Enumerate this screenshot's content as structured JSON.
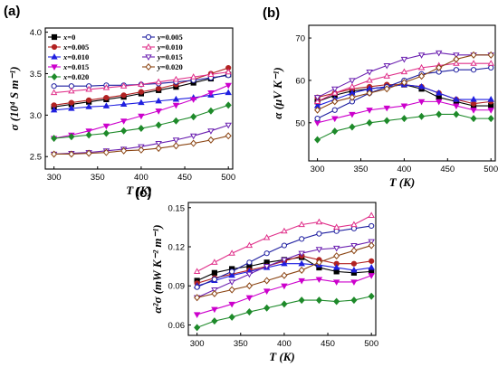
{
  "panels": [
    {
      "label": "(a)"
    },
    {
      "label": "(b)"
    },
    {
      "label": "(c)"
    }
  ],
  "series_meta": [
    {
      "name": "x=0",
      "var": "x",
      "val": "=0",
      "color": "#000000",
      "marker": "square",
      "filled": true
    },
    {
      "name": "x=0.005",
      "var": "x",
      "val": "=0.005",
      "color": "#b22222",
      "marker": "circle",
      "filled": true
    },
    {
      "name": "x=0.010",
      "var": "x",
      "val": "=0.010",
      "color": "#1f1fe0",
      "marker": "triangle-up",
      "filled": true
    },
    {
      "name": "x=0.015",
      "var": "x",
      "val": "=0.015",
      "color": "#cc00cc",
      "marker": "triangle-down",
      "filled": true
    },
    {
      "name": "x=0.020",
      "var": "x",
      "val": "=0.020",
      "color": "#1e8a2a",
      "marker": "diamond",
      "filled": true
    },
    {
      "name": "y=0.005",
      "var": "y",
      "val": "=0.005",
      "color": "#1f1fa0",
      "marker": "circle",
      "filled": false
    },
    {
      "name": "y=0.010",
      "var": "y",
      "val": "=0.010",
      "color": "#e0308a",
      "marker": "triangle-up",
      "filled": false
    },
    {
      "name": "y=0.015",
      "var": "y",
      "val": "=0.015",
      "color": "#6a1fb0",
      "marker": "triangle-down",
      "filled": false
    },
    {
      "name": "y=0.020",
      "var": "y",
      "val": "=0.020",
      "color": "#8b4513",
      "marker": "diamond",
      "filled": false
    }
  ],
  "chart_data": [
    {
      "type": "line",
      "panel": "(a)",
      "xlabel": "T (K)",
      "ylabel": "σ (10⁴ S m⁻¹)",
      "xlim": [
        290,
        505
      ],
      "ylim": [
        2.35,
        4.05
      ],
      "xticks": [
        "300",
        "350",
        "400",
        "450",
        "500"
      ],
      "yticks": [
        "2.5",
        "3.0",
        "3.5",
        "4.0"
      ],
      "legend": "upper-left, two columns",
      "x": [
        300,
        320,
        340,
        360,
        380,
        400,
        420,
        440,
        460,
        480,
        500
      ],
      "series": [
        {
          "name": "x=0",
          "values": [
            3.1,
            3.13,
            3.16,
            3.19,
            3.22,
            3.26,
            3.3,
            3.34,
            3.39,
            3.44,
            3.49
          ]
        },
        {
          "name": "x=0.005",
          "values": [
            3.12,
            3.15,
            3.18,
            3.21,
            3.24,
            3.28,
            3.32,
            3.37,
            3.43,
            3.5,
            3.57
          ]
        },
        {
          "name": "x=0.010",
          "values": [
            3.06,
            3.08,
            3.1,
            3.11,
            3.13,
            3.15,
            3.17,
            3.19,
            3.21,
            3.24,
            3.27
          ]
        },
        {
          "name": "x=0.015",
          "values": [
            2.72,
            2.76,
            2.81,
            2.87,
            2.93,
            2.99,
            3.05,
            3.12,
            3.19,
            3.27,
            3.36
          ]
        },
        {
          "name": "x=0.020",
          "values": [
            2.72,
            2.74,
            2.76,
            2.78,
            2.81,
            2.84,
            2.88,
            2.93,
            2.98,
            3.05,
            3.12
          ]
        },
        {
          "name": "y=0.005",
          "values": [
            3.35,
            3.35,
            3.35,
            3.36,
            3.36,
            3.37,
            3.38,
            3.4,
            3.42,
            3.45,
            3.48
          ]
        },
        {
          "name": "y=0.010",
          "values": [
            3.27,
            3.29,
            3.31,
            3.33,
            3.35,
            3.37,
            3.4,
            3.43,
            3.46,
            3.49,
            3.52
          ]
        },
        {
          "name": "y=0.015",
          "values": [
            2.53,
            2.54,
            2.55,
            2.57,
            2.59,
            2.62,
            2.66,
            2.7,
            2.75,
            2.81,
            2.88
          ]
        },
        {
          "name": "y=0.020",
          "values": [
            2.53,
            2.53,
            2.54,
            2.55,
            2.57,
            2.58,
            2.6,
            2.63,
            2.66,
            2.7,
            2.75
          ]
        }
      ]
    },
    {
      "type": "line",
      "panel": "(b)",
      "xlabel": "T (K)",
      "ylabel": "α (μV K⁻¹)",
      "xlim": [
        290,
        505
      ],
      "ylim": [
        41,
        73
      ],
      "xticks": [
        "300",
        "350",
        "400",
        "450",
        "500"
      ],
      "yticks": [
        "50",
        "60",
        "70"
      ],
      "x": [
        300,
        320,
        340,
        360,
        380,
        400,
        420,
        440,
        460,
        480,
        500
      ],
      "series": [
        {
          "name": "x=0",
          "values": [
            55,
            56.5,
            57.5,
            58,
            58.5,
            59,
            58,
            56,
            55,
            54,
            54
          ]
        },
        {
          "name": "x=0.005",
          "values": [
            56,
            57,
            58,
            58.5,
            59,
            59,
            58.5,
            57,
            55.5,
            54.5,
            55
          ]
        },
        {
          "name": "x=0.010",
          "values": [
            54,
            55.5,
            57,
            58,
            58.5,
            59,
            58.5,
            57,
            55.5,
            55.5,
            55.5
          ]
        },
        {
          "name": "x=0.015",
          "values": [
            50,
            51,
            52,
            53,
            53.5,
            54,
            55,
            55,
            54,
            53,
            53
          ]
        },
        {
          "name": "x=0.020",
          "values": [
            46,
            48,
            49,
            50,
            50.5,
            51,
            51.5,
            52,
            52,
            51,
            51
          ]
        },
        {
          "name": "y=0.005",
          "values": [
            51,
            53,
            55,
            57,
            58.5,
            60,
            61.5,
            62,
            62.5,
            62.5,
            63
          ]
        },
        {
          "name": "y=0.010",
          "values": [
            55,
            57,
            58.5,
            60,
            61,
            62,
            63,
            63.5,
            64,
            64,
            64
          ]
        },
        {
          "name": "y=0.015",
          "values": [
            56,
            58,
            60,
            62,
            63.5,
            65,
            66,
            66.5,
            66,
            66,
            66
          ]
        },
        {
          "name": "y=0.020",
          "values": [
            53,
            55,
            56,
            57,
            58,
            59.5,
            61,
            63,
            65,
            66,
            66
          ]
        }
      ]
    },
    {
      "type": "line",
      "panel": "(c)",
      "xlabel": "T (K)",
      "ylabel": "α²σ (mW K⁻² m⁻¹)",
      "xlim": [
        290,
        505
      ],
      "ylim": [
        0.052,
        0.154
      ],
      "xticks": [
        "300",
        "350",
        "400",
        "450",
        "500"
      ],
      "yticks": [
        "0.06",
        "0.09",
        "0.12",
        "0.15"
      ],
      "x": [
        300,
        320,
        340,
        360,
        380,
        400,
        420,
        440,
        460,
        480,
        500
      ],
      "series": [
        {
          "name": "x=0",
          "values": [
            0.094,
            0.1,
            0.103,
            0.105,
            0.108,
            0.11,
            0.112,
            0.104,
            0.101,
            0.1,
            0.101
          ]
        },
        {
          "name": "x=0.005",
          "values": [
            0.092,
            0.096,
            0.099,
            0.102,
            0.105,
            0.109,
            0.113,
            0.11,
            0.107,
            0.107,
            0.109
          ]
        },
        {
          "name": "x=0.010",
          "values": [
            0.09,
            0.094,
            0.098,
            0.101,
            0.104,
            0.107,
            0.107,
            0.106,
            0.104,
            0.102,
            0.104
          ]
        },
        {
          "name": "x=0.015",
          "values": [
            0.068,
            0.072,
            0.076,
            0.081,
            0.086,
            0.09,
            0.094,
            0.095,
            0.093,
            0.093,
            0.098
          ]
        },
        {
          "name": "x=0.020",
          "values": [
            0.058,
            0.063,
            0.066,
            0.07,
            0.073,
            0.076,
            0.079,
            0.079,
            0.078,
            0.079,
            0.082
          ]
        },
        {
          "name": "y=0.005",
          "values": [
            0.089,
            0.095,
            0.101,
            0.108,
            0.115,
            0.121,
            0.126,
            0.13,
            0.132,
            0.134,
            0.136
          ]
        },
        {
          "name": "y=0.010",
          "values": [
            0.101,
            0.108,
            0.115,
            0.121,
            0.127,
            0.132,
            0.137,
            0.139,
            0.135,
            0.137,
            0.144
          ]
        },
        {
          "name": "y=0.015",
          "values": [
            0.081,
            0.087,
            0.093,
            0.099,
            0.105,
            0.11,
            0.115,
            0.118,
            0.119,
            0.121,
            0.124
          ]
        },
        {
          "name": "y=0.020",
          "values": [
            0.081,
            0.084,
            0.087,
            0.09,
            0.094,
            0.098,
            0.102,
            0.108,
            0.113,
            0.117,
            0.121
          ]
        }
      ]
    }
  ]
}
